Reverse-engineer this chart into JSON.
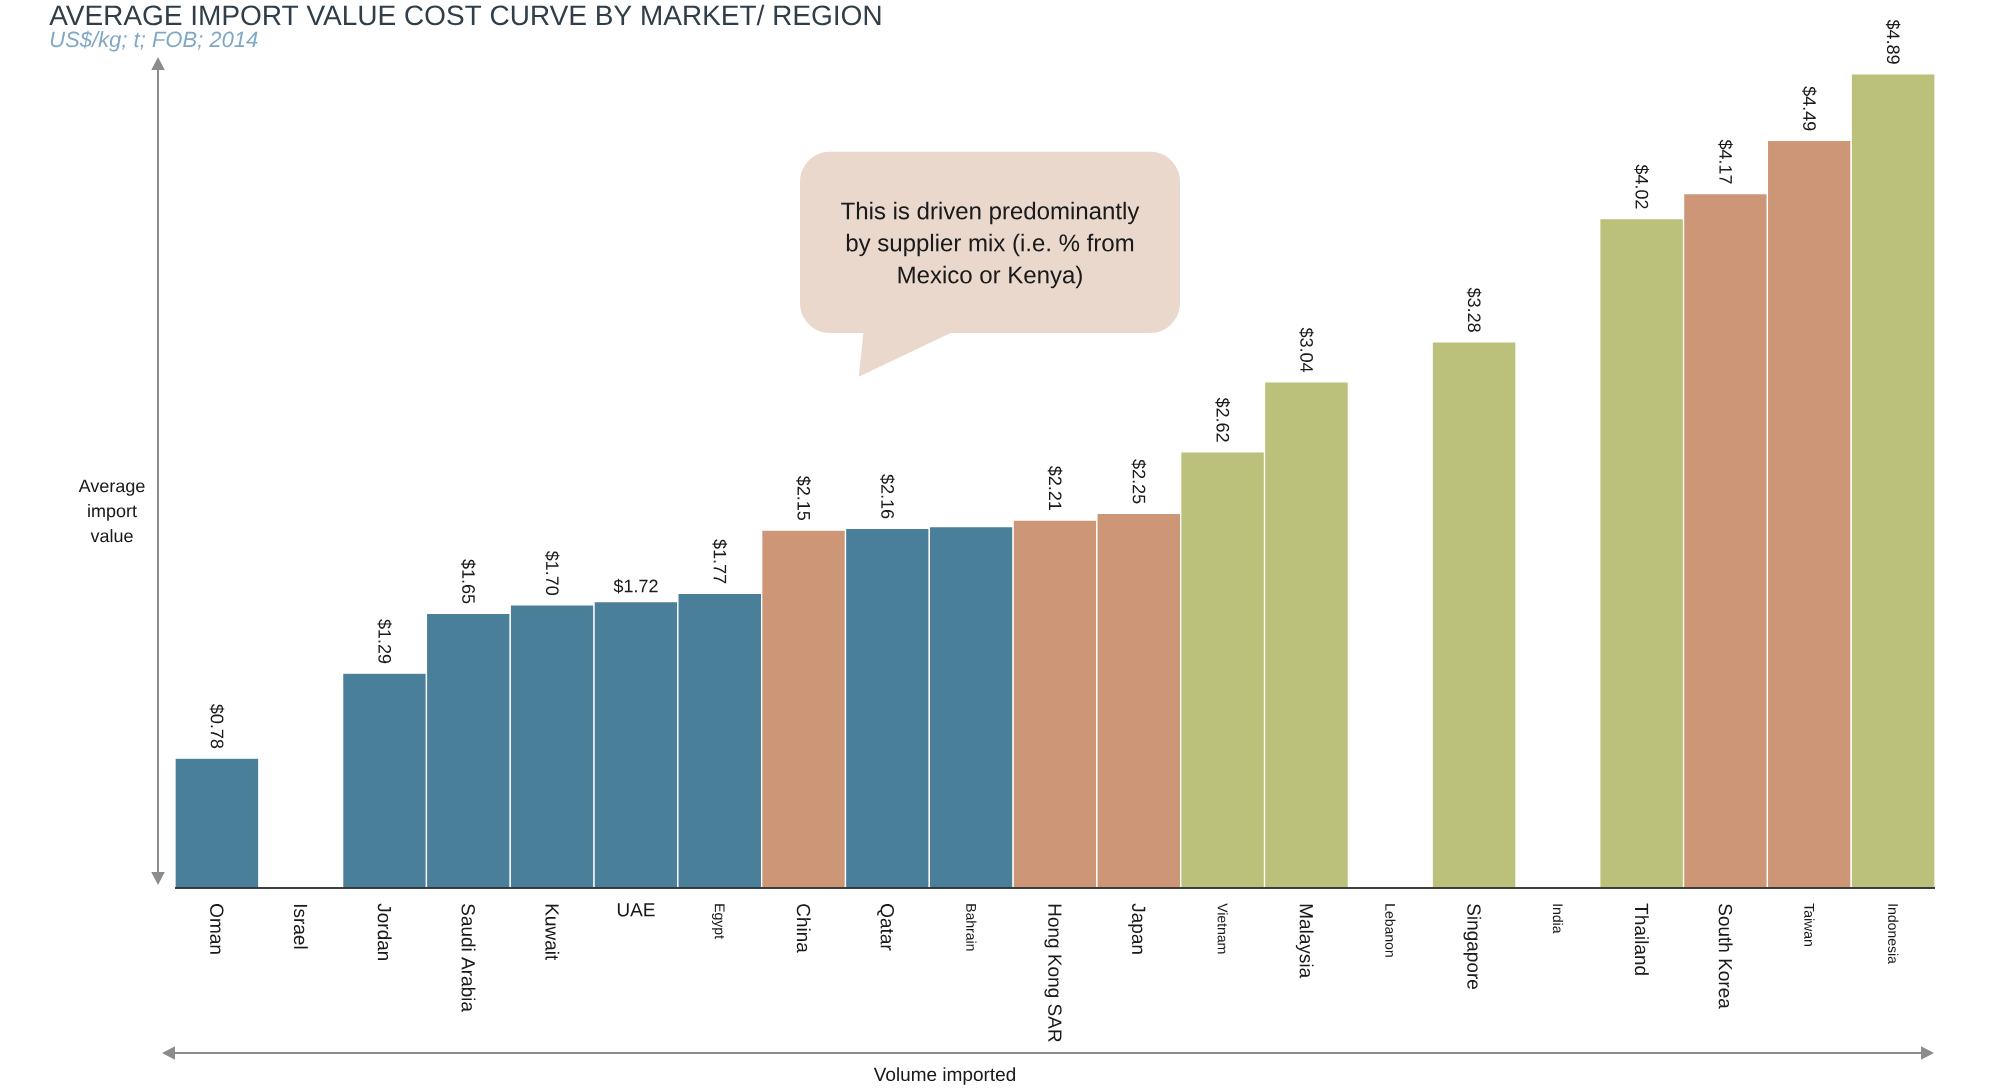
{
  "chart_data": {
    "type": "bar",
    "title": "AVERAGE IMPORT VALUE COST CURVE BY MARKET/ REGION",
    "subtitle": "US$/kg; t; FOB; 2014",
    "xlabel": "Volume imported",
    "ylabel": "Average import value",
    "annotations": [
      "This is driven predominantly by supplier mix (i.e. % from Mexico or Kenya)"
    ],
    "categories": [
      "Oman",
      "Israel",
      "Jordan",
      "Saudi Arabia",
      "Kuwait",
      "UAE",
      "Egypt",
      "China",
      "Qatar",
      "Bahrain",
      "Hong Kong SAR",
      "Japan",
      "Vietnam",
      "Malaysia",
      "Lebanon",
      "Singapore",
      "India",
      "Thailand",
      "South Korea",
      "Taiwan",
      "Indonesia"
    ],
    "values": [
      0.78,
      null,
      1.29,
      1.65,
      1.7,
      1.72,
      1.77,
      2.15,
      2.16,
      2.17,
      2.21,
      2.25,
      2.62,
      3.04,
      null,
      3.28,
      null,
      4.02,
      4.17,
      4.49,
      4.89
    ],
    "value_labels": [
      "$0.78",
      null,
      "$1.29",
      "$1.65",
      "$1.70",
      "$1.72",
      "$1.77",
      "$2.15",
      "$2.16",
      null,
      "$2.21",
      "$2.25",
      "$2.62",
      "$3.04",
      null,
      "$3.28",
      null,
      "$4.02",
      "$4.17",
      "$4.49",
      "$4.89"
    ],
    "colors": [
      "#4a7f9a",
      "#4a7f9a",
      "#4a7f9a",
      "#4a7f9a",
      "#4a7f9a",
      "#4a7f9a",
      "#4a7f9a",
      "#cc9677",
      "#4a7f9a",
      "#4a7f9a",
      "#cc9677",
      "#cc9677",
      "#bbc07a",
      "#bbc07a",
      "#4a7f9a",
      "#bbc07a",
      "#bbc07a",
      "#bbc07a",
      "#cc9677",
      "#cc9677",
      "#bbc07a"
    ],
    "tick_labels": "x"
  }
}
